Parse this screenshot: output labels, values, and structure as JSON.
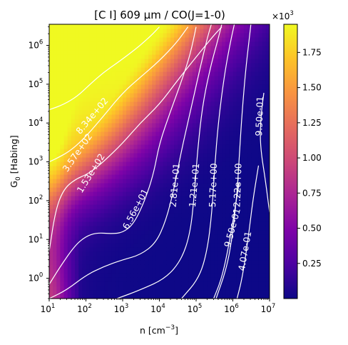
{
  "chart_data": {
    "type": "heatmap",
    "title": "[C I] 609 μm / CO(J=1-0)",
    "xlabel": "n [cm$^{-3}$]",
    "xlabel_display": [
      "n [cm",
      "−3",
      "]"
    ],
    "ylabel_display": [
      "G",
      "0",
      " [Habing]"
    ],
    "x_scale": "log",
    "y_scale": "log",
    "xlim": [
      10,
      10000000
    ],
    "ylim": [
      0.3,
      3500000
    ],
    "x_ticks": [
      {
        "value": 10,
        "base": "10",
        "exp": "1"
      },
      {
        "value": 100,
        "base": "10",
        "exp": "2"
      },
      {
        "value": 1000,
        "base": "10",
        "exp": "3"
      },
      {
        "value": 10000,
        "base": "10",
        "exp": "4"
      },
      {
        "value": 100000,
        "base": "10",
        "exp": "5"
      },
      {
        "value": 1000000,
        "base": "10",
        "exp": "6"
      },
      {
        "value": 10000000,
        "base": "10",
        "exp": "7"
      }
    ],
    "y_ticks": [
      {
        "value": 1,
        "base": "10",
        "exp": "0"
      },
      {
        "value": 10,
        "base": "10",
        "exp": "1"
      },
      {
        "value": 100,
        "base": "10",
        "exp": "2"
      },
      {
        "value": 1000,
        "base": "10",
        "exp": "3"
      },
      {
        "value": 10000,
        "base": "10",
        "exp": "4"
      },
      {
        "value": 100000,
        "base": "10",
        "exp": "5"
      },
      {
        "value": 1000000,
        "base": "10",
        "exp": "6"
      }
    ],
    "colormap": "plasma",
    "colorbar": {
      "min": 0.0,
      "max": 1.95,
      "multiplier": "×10",
      "multiplier_exp": "3",
      "ticks": [
        "0.25",
        "0.50",
        "0.75",
        "1.00",
        "1.25",
        "1.50",
        "1.75"
      ],
      "tick_values": [
        0.25,
        0.5,
        0.75,
        1.0,
        1.25,
        1.5,
        1.75
      ]
    },
    "contours": [
      {
        "label": "8.34e+02",
        "label_at": [
          150,
          15000
        ],
        "label_rotation": -50,
        "points": [
          [
            10,
            22000
          ],
          [
            25,
            30000
          ],
          [
            60,
            50000
          ],
          [
            130,
            100000
          ],
          [
            300,
            200000
          ],
          [
            700,
            350000
          ],
          [
            1500,
            600000
          ],
          [
            3000,
            1000000
          ],
          [
            6000,
            1800000
          ],
          [
            10000,
            3000000
          ]
        ]
      },
      {
        "label": "3.57e+02",
        "label_at": [
          60,
          1700
        ],
        "label_rotation": -55,
        "points": [
          [
            10,
            1000
          ],
          [
            18,
            1300
          ],
          [
            40,
            2000
          ],
          [
            100,
            4500
          ],
          [
            300,
            15000
          ],
          [
            1000,
            60000
          ],
          [
            3000,
            150000
          ],
          [
            10000,
            400000
          ],
          [
            30000,
            1200000
          ],
          [
            60000,
            3000000
          ]
        ]
      },
      {
        "label": "1.53e+02",
        "label_at": [
          140,
          500
        ],
        "label_rotation": -58,
        "points": [
          [
            10,
            5
          ],
          [
            15,
            60
          ],
          [
            25,
            200
          ],
          [
            50,
            350
          ],
          [
            120,
            500
          ],
          [
            300,
            1000
          ],
          [
            1000,
            3000
          ],
          [
            3000,
            10000
          ],
          [
            10000,
            30000
          ],
          [
            30000,
            120000
          ],
          [
            100000,
            500000
          ],
          [
            300000,
            1800000
          ],
          [
            500000,
            3000000
          ]
        ]
      },
      {
        "label": "6.56e+01",
        "label_at": [
          2300,
          60
        ],
        "label_rotation": -62,
        "points": [
          [
            10,
            0.7
          ],
          [
            20,
            2
          ],
          [
            50,
            7
          ],
          [
            100,
            12
          ],
          [
            200,
            15
          ],
          [
            500,
            14
          ],
          [
            1000,
            15
          ],
          [
            2000,
            25
          ],
          [
            4000,
            100
          ],
          [
            7000,
            500
          ],
          [
            10000,
            3000
          ],
          [
            20000,
            20000
          ],
          [
            40000,
            120000
          ],
          [
            70000,
            600000
          ],
          [
            100000,
            3000000
          ]
        ]
      },
      {
        "label": "2.81e+01",
        "label_at": [
          27000,
          250
        ],
        "label_rotation": -85,
        "points": [
          [
            10,
            0.3
          ],
          [
            30,
            0.5
          ],
          [
            100,
            1.2
          ],
          [
            300,
            2
          ],
          [
            1000,
            3
          ],
          [
            3000,
            4
          ],
          [
            8000,
            8
          ],
          [
            15000,
            30
          ],
          [
            25000,
            200
          ],
          [
            40000,
            2000
          ],
          [
            70000,
            20000
          ],
          [
            120000,
            200000
          ],
          [
            200000,
            1500000
          ],
          [
            260000,
            3500000
          ]
        ]
      },
      {
        "label": "1.21e+01",
        "label_at": [
          92000,
          250
        ],
        "label_rotation": -85,
        "points": [
          [
            700,
            0.3
          ],
          [
            3000,
            0.5
          ],
          [
            15000,
            1
          ],
          [
            40000,
            3
          ],
          [
            70000,
            15
          ],
          [
            90000,
            150
          ],
          [
            110000,
            2000
          ],
          [
            150000,
            30000
          ],
          [
            250000,
            300000
          ],
          [
            400000,
            1500000
          ],
          [
            500000,
            3500000
          ]
        ]
      },
      {
        "label": "5.17e+00",
        "label_at": [
          300000,
          250
        ],
        "label_rotation": -88,
        "points": [
          [
            40000,
            0.3
          ],
          [
            120000,
            1
          ],
          [
            200000,
            5
          ],
          [
            270000,
            50
          ],
          [
            320000,
            700
          ],
          [
            400000,
            10000
          ],
          [
            600000,
            200000
          ],
          [
            900000,
            1500000
          ],
          [
            1100000,
            3500000
          ]
        ]
      },
      {
        "label": "2.22e+00",
        "label_at": [
          1400000,
          250
        ],
        "label_rotation": -88,
        "points": [
          [
            350000,
            0.3
          ],
          [
            700000,
            2
          ],
          [
            1000000,
            15
          ],
          [
            1300000,
            150
          ],
          [
            1500000,
            1500
          ],
          [
            1800000,
            20000
          ],
          [
            2200000,
            200000
          ],
          [
            2800000,
            1500000
          ],
          [
            3100000,
            3500000
          ]
        ]
      },
      {
        "label": "9.50e-01",
        "label_at": [
          1000000,
          20
        ],
        "label_rotation": -75,
        "points": [
          [
            300000,
            0.3
          ],
          [
            500000,
            1
          ],
          [
            800000,
            8
          ],
          [
            1100000,
            50
          ],
          [
            1500000,
            300
          ]
        ]
      },
      {
        "label": "4.07e-01",
        "label_at": [
          2200000,
          5
        ],
        "label_rotation": -80,
        "points": [
          [
            1300000,
            0.3
          ],
          [
            1800000,
            1
          ],
          [
            2600000,
            10
          ],
          [
            3500000,
            100
          ],
          [
            5000000,
            800
          ]
        ]
      },
      {
        "label": "9.50e-01",
        "label_at": [
          5500000,
          15000
        ],
        "label_rotation": -88,
        "points": [
          [
            7000000,
            60000
          ],
          [
            6000000,
            20000
          ],
          [
            5500000,
            5000
          ],
          [
            6000000,
            1500
          ],
          [
            7500000,
            400
          ],
          [
            10000000,
            50
          ]
        ]
      }
    ]
  }
}
